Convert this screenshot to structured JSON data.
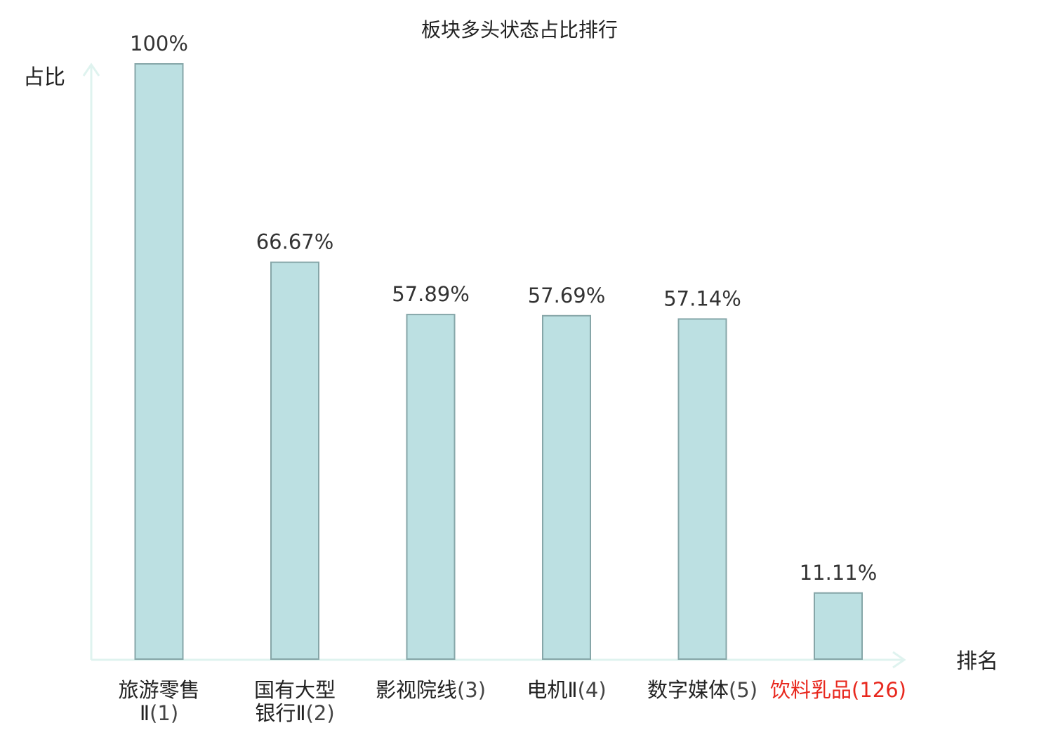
{
  "chart_data": {
    "type": "bar",
    "title": "板块多头状态占比排行",
    "ylabel": "占比",
    "xlabel": "排名",
    "ylim": [
      0,
      100
    ],
    "grid": false,
    "colors": {
      "bar_fill": "#bce0e2",
      "bar_stroke": "#86a6a8",
      "axis": "#dff3ef",
      "highlight_text": "#e8281e"
    },
    "categories": [
      {
        "label": "旅游零售Ⅱ",
        "rank": "(1)",
        "highlight": false
      },
      {
        "label": "国有大型银行Ⅱ",
        "rank": "(2)",
        "highlight": false
      },
      {
        "label": "影视院线",
        "rank": "(3)",
        "highlight": false
      },
      {
        "label": "电机Ⅱ",
        "rank": "(4)",
        "highlight": false
      },
      {
        "label": "数字媒体",
        "rank": "(5)",
        "highlight": false
      },
      {
        "label": "饮料乳品",
        "rank": "(126)",
        "highlight": true
      }
    ],
    "values": [
      100,
      66.67,
      57.89,
      57.69,
      57.14,
      11.11
    ],
    "value_labels": [
      "100%",
      "66.67%",
      "57.89%",
      "57.69%",
      "57.14%",
      "11.11%"
    ]
  }
}
